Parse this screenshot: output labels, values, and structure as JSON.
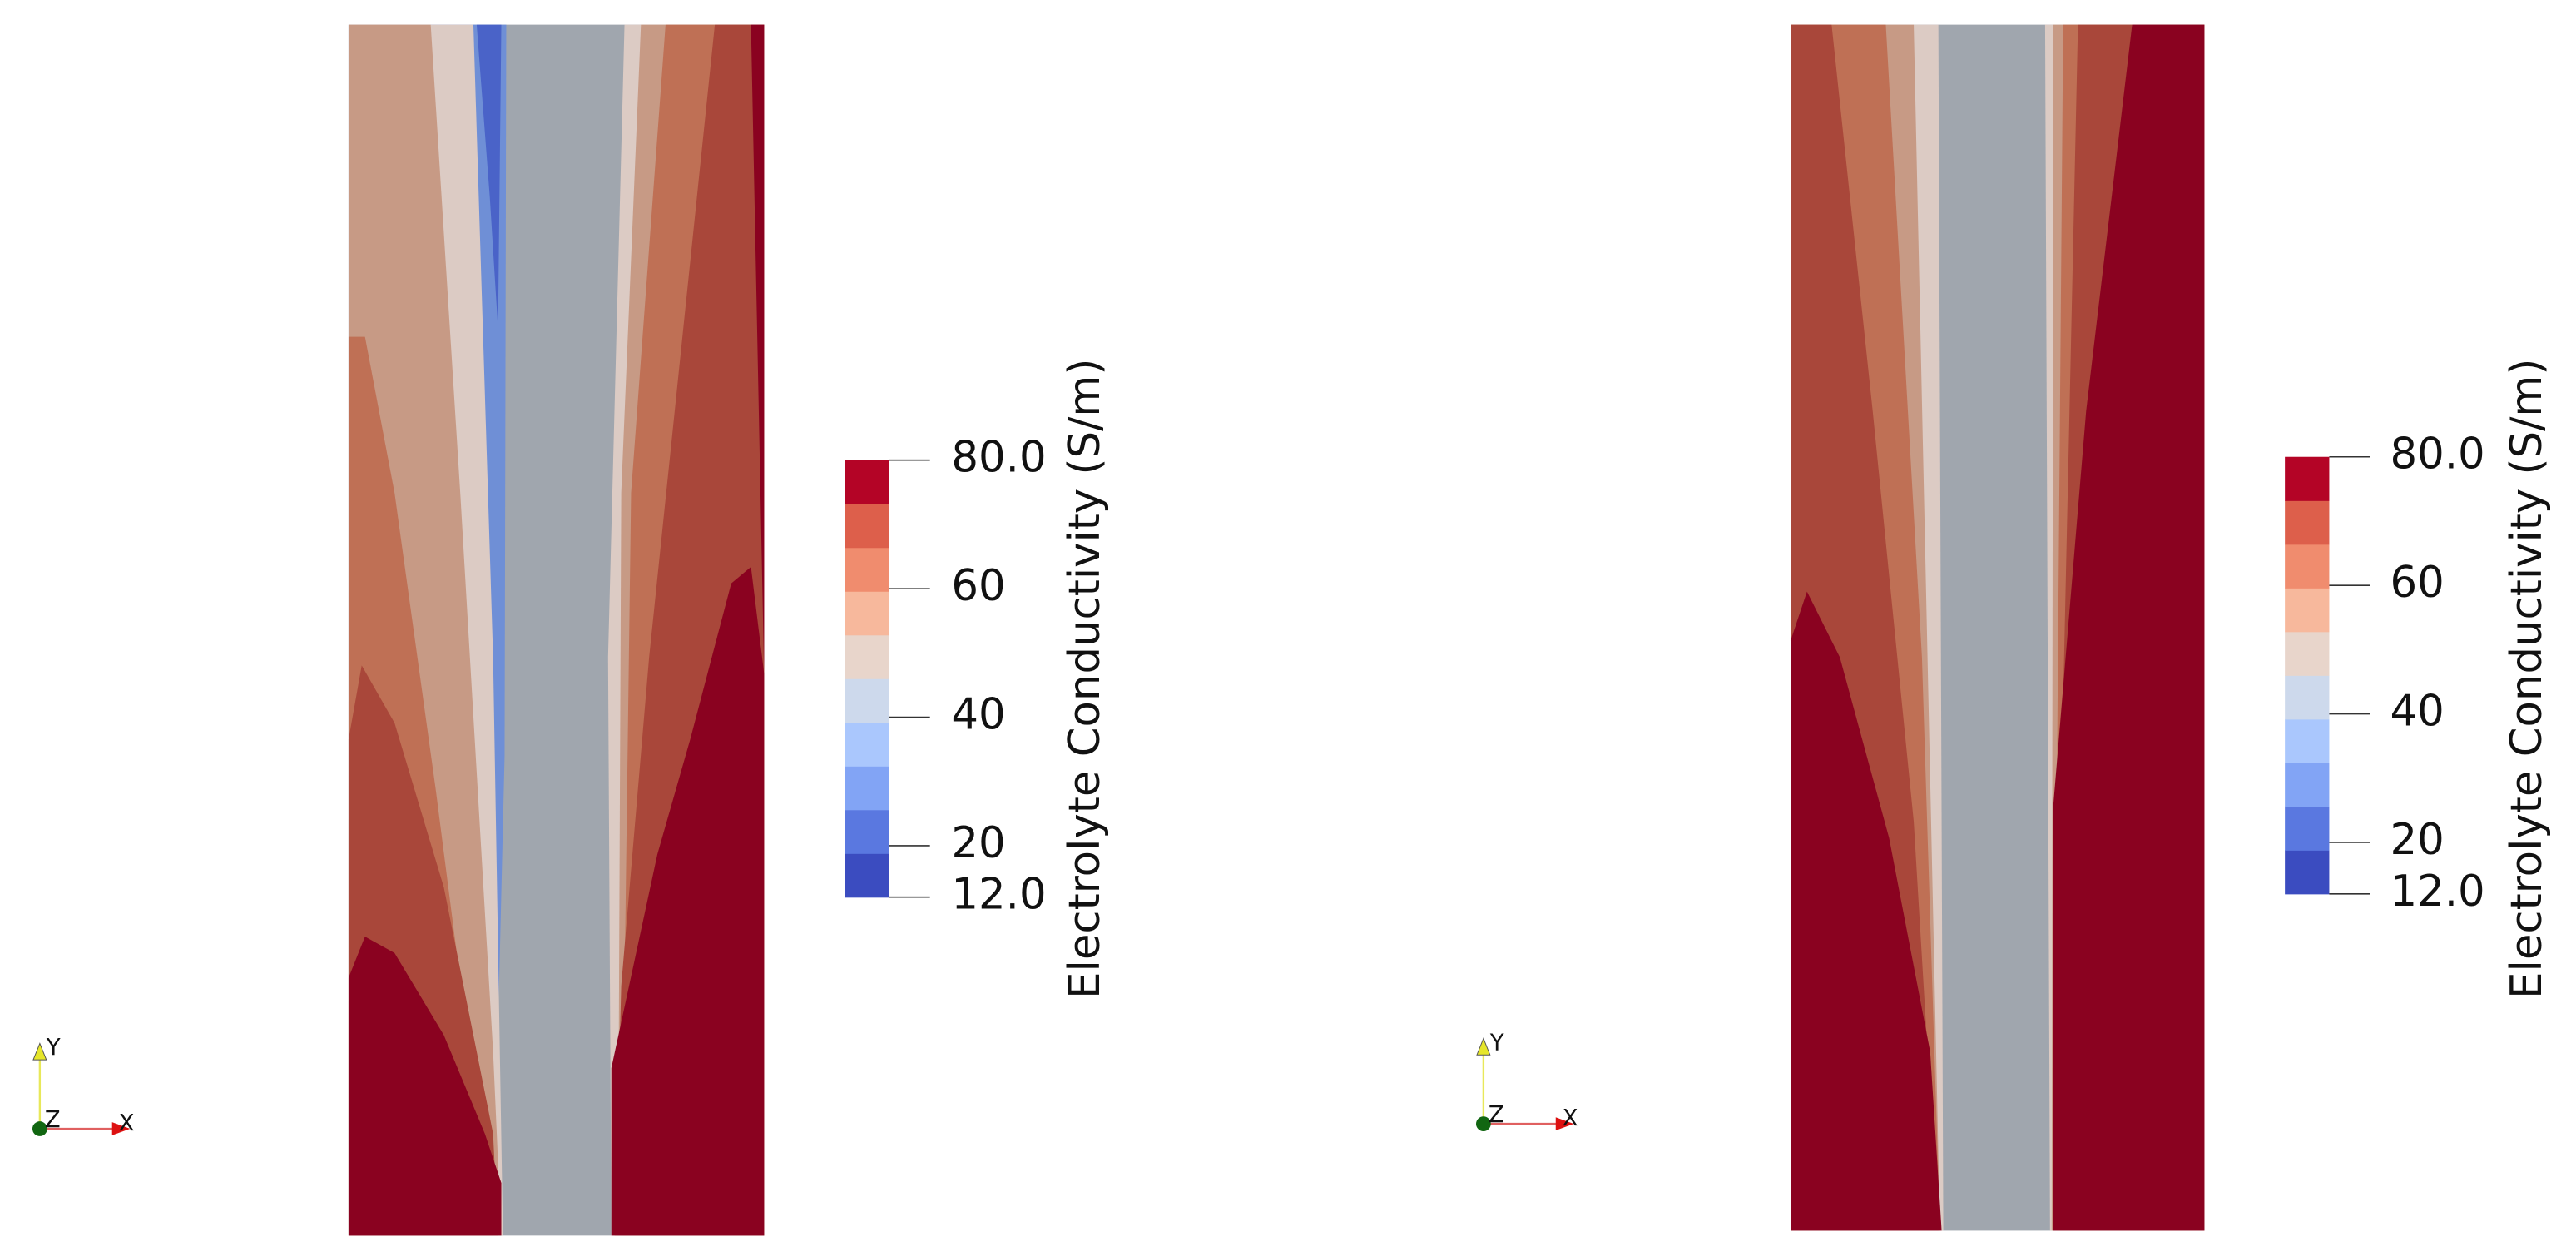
{
  "views": [
    {
      "colorbar": {
        "title": "Electrolyte Conductivity (S/m)",
        "range": [
          12,
          80
        ],
        "ticks": [
          {
            "value": 80,
            "label": "80.0"
          },
          60,
          40,
          20,
          {
            "value": 12,
            "label": "12.0"
          }
        ],
        "colors": [
          "#3b4cc0",
          "#5a78e0",
          "#82a4f5",
          "#aac7fd",
          "#cdd9ec",
          "#e8d5cb",
          "#f7b89c",
          "#f08c6e",
          "#dd5f4b",
          "#b40426"
        ]
      },
      "axes": {
        "x": "X",
        "y": "Y",
        "z": "Z"
      }
    },
    {
      "colorbar": {
        "title": "Electrolyte Conductivity (S/m)",
        "range": [
          12,
          80
        ],
        "ticks": [
          {
            "value": 80,
            "label": "80.0"
          },
          60,
          40,
          20,
          {
            "value": 12,
            "label": "12.0"
          }
        ],
        "colors": [
          "#3b4cc0",
          "#5a78e0",
          "#82a4f5",
          "#aac7fd",
          "#cdd9ec",
          "#e8d5cb",
          "#f7b89c",
          "#f08c6e",
          "#dd5f4b",
          "#b40426"
        ]
      },
      "axes": {
        "x": "X",
        "y": "Y",
        "z": "Z"
      }
    }
  ]
}
